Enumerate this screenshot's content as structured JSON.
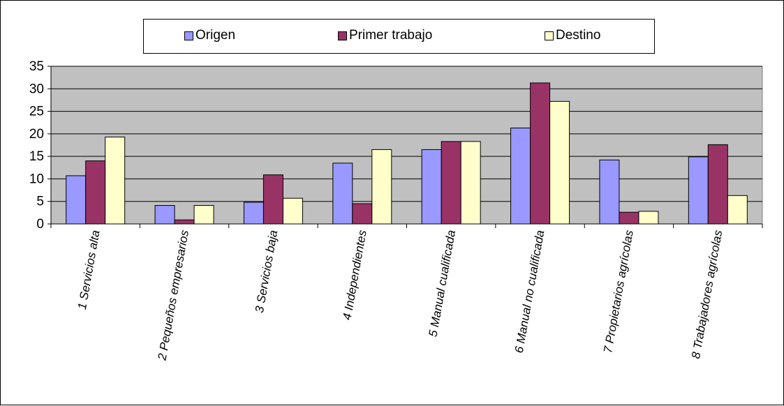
{
  "chart_data": {
    "type": "bar",
    "categories": [
      "1 Servicios alta",
      "2 Pequeños empresarios",
      "3 Servicios baja",
      "4 Independientes",
      "5 Manual cualificada",
      "6 Manual no cualificada",
      "7 Propietarios agrícolas",
      "8 Trabajadores agrícolas"
    ],
    "series": [
      {
        "name": "Origen",
        "color": "#9999ff",
        "values": [
          10.7,
          4.1,
          4.8,
          13.5,
          16.5,
          21.3,
          14.2,
          14.9
        ]
      },
      {
        "name": "Primer trabajo",
        "color": "#993366",
        "values": [
          14.0,
          0.9,
          10.9,
          4.5,
          18.3,
          31.3,
          2.6,
          17.6
        ]
      },
      {
        "name": "Destino",
        "color": "#ffffcc",
        "values": [
          19.3,
          4.1,
          5.7,
          16.5,
          18.3,
          27.2,
          2.8,
          6.3
        ]
      }
    ],
    "ylim": [
      0,
      35
    ],
    "yticks": [
      0,
      5,
      10,
      15,
      20,
      25,
      30,
      35
    ],
    "grid": true,
    "plot_background": "#c0c0c0",
    "legend_position": "top"
  }
}
